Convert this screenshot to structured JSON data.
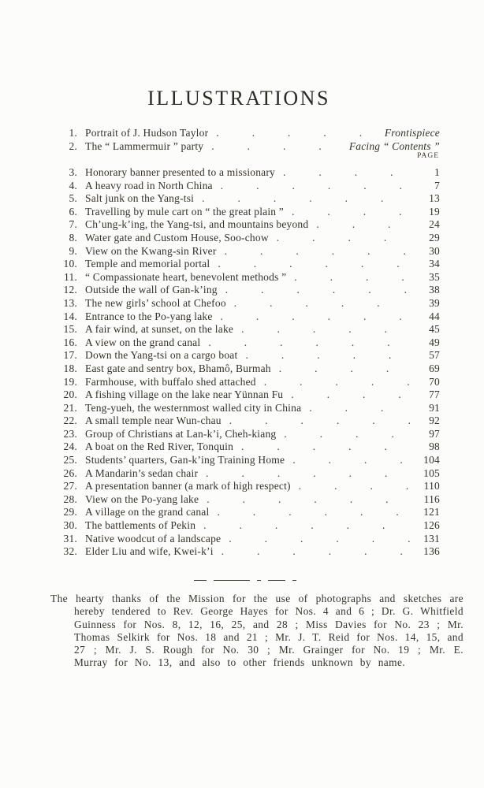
{
  "book_page": {
    "title": "ILLUSTRATIONS",
    "column_label": "PAGE",
    "front_matter": [
      {
        "num": "1.",
        "title": "Portrait of J. Hudson Taylor",
        "ref": "Frontispiece"
      },
      {
        "num": "2.",
        "title": "The “ Lammermuir ” party",
        "ref": "Facing “ Contents ”"
      }
    ],
    "entries": [
      {
        "num": "3.",
        "title": "Honorary banner presented to a missionary",
        "page": "1"
      },
      {
        "num": "4.",
        "title": "A heavy road in North China",
        "page": "7"
      },
      {
        "num": "5.",
        "title": "Salt junk on the Yang-tsi",
        "page": "13"
      },
      {
        "num": "6.",
        "title": "Travelling by mule cart on “ the great plain ”",
        "page": "19"
      },
      {
        "num": "7.",
        "title": "Ch’ung-k’ing, the Yang-tsi, and mountains beyond",
        "page": "24"
      },
      {
        "num": "8.",
        "title": "Water gate and Custom House, Soo-chow",
        "page": "29"
      },
      {
        "num": "9.",
        "title": "View on the Kwang-sin River",
        "page": "30"
      },
      {
        "num": "10.",
        "title": "Temple and memorial portal",
        "page": "34"
      },
      {
        "num": "11.",
        "title": "“ Compassionate heart, benevolent methods ”",
        "page": "35"
      },
      {
        "num": "12.",
        "title": "Outside the wall of Gan-k’ing",
        "page": "38"
      },
      {
        "num": "13.",
        "title": "The new girls’ school at Chefoo",
        "page": "39"
      },
      {
        "num": "14.",
        "title": "Entrance to the Po-yang lake",
        "page": "44"
      },
      {
        "num": "15.",
        "title": "A fair wind, at sunset, on the lake",
        "page": "45"
      },
      {
        "num": "16.",
        "title": "A view on the grand canal",
        "page": "49"
      },
      {
        "num": "17.",
        "title": "Down the Yang-tsi on a cargo boat",
        "page": "57"
      },
      {
        "num": "18.",
        "title": "East gate and sentry box, Bhamô, Burmah",
        "page": "69"
      },
      {
        "num": "19.",
        "title": "Farmhouse, with buffalo shed attached",
        "page": "70"
      },
      {
        "num": "20.",
        "title": "A fishing village on the lake near Yünnan Fu",
        "page": "77"
      },
      {
        "num": "21.",
        "title": "Teng-yueh, the westernmost walled city in China",
        "page": "91"
      },
      {
        "num": "22.",
        "title": "A small temple near Wun-chau",
        "page": "92"
      },
      {
        "num": "23.",
        "title": "Group of Christians at Lan-k’i, Cheh-kiang",
        "page": "97"
      },
      {
        "num": "24.",
        "title": "A boat on the Red River, Tonquin",
        "page": "98"
      },
      {
        "num": "25.",
        "title": "Students’ quarters, Gan-k’ing Training Home",
        "page": "104"
      },
      {
        "num": "26.",
        "title": "A Mandarin’s sedan chair",
        "page": "105"
      },
      {
        "num": "27.",
        "title": "A presentation banner (a mark of high respect)",
        "page": "110"
      },
      {
        "num": "28.",
        "title": "View on the Po-yang lake",
        "page": "116"
      },
      {
        "num": "29.",
        "title": "A village on the grand canal",
        "page": "121"
      },
      {
        "num": "30.",
        "title": "The battlements of Pekin",
        "page": "126"
      },
      {
        "num": "31.",
        "title": "Native woodcut of a landscape",
        "page": "131"
      },
      {
        "num": "32.",
        "title": "Elder Liu and wife, Kwei-k’i",
        "page": "136"
      }
    ],
    "acknowledgment": "The hearty thanks of the Mission for the use of photographs and sketches are hereby tendered to Rev. George Hayes for Nos. 4 and 6 ; Dr. G. Whitfield Guinness for Nos. 8, 12, 16, 25, and 28 ; Miss Davies for No. 23 ; Mr. Thomas Selkirk for Nos. 18 and 21 ; Mr. J. T. Reid for Nos. 14, 15, and 27 ; Mr. J. S. Rough for No. 30 ; Mr. Grainger for No. 19 ; Mr. E. Murray for No. 13, and also to other friends unknown by name.",
    "colors": {
      "ink": "#34312b",
      "paper": "#fcfcfa"
    }
  }
}
